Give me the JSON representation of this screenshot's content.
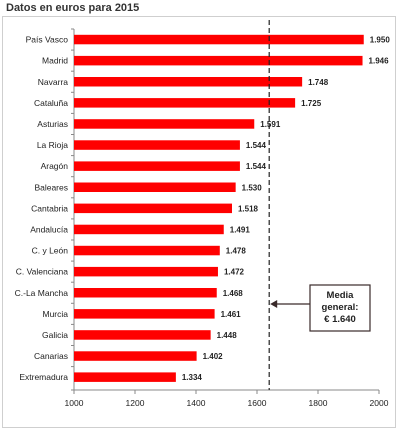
{
  "title": "Datos en euros para 2015",
  "chart_data": {
    "type": "bar",
    "orientation": "horizontal",
    "title": "Datos en euros para 2015",
    "categories": [
      "País Vasco",
      "Madrid",
      "Navarra",
      "Cataluña",
      "Asturias",
      "La Rioja",
      "Aragón",
      "Baleares",
      "Cantabria",
      "Andalucía",
      "C. y León",
      "C. Valenciana",
      "C.-La Mancha",
      "Murcia",
      "Galicia",
      "Canarias",
      "Extremadura"
    ],
    "values": [
      1950,
      1946,
      1748,
      1725,
      1591,
      1544,
      1544,
      1530,
      1518,
      1491,
      1478,
      1472,
      1468,
      1461,
      1448,
      1402,
      1334
    ],
    "value_labels": [
      "1.950",
      "1.946",
      "1.748",
      "1.725",
      "1.591",
      "1.544",
      "1.544",
      "1.530",
      "1.518",
      "1.491",
      "1.478",
      "1.472",
      "1.468",
      "1.461",
      "1.448",
      "1.402",
      "1.334"
    ],
    "xlim": [
      1000,
      2000
    ],
    "xticks": [
      1000,
      1200,
      1400,
      1600,
      1800,
      2000
    ],
    "xtick_labels": [
      "1000",
      "1200",
      "1400",
      "1600",
      "1800",
      "2000"
    ],
    "reference_line": {
      "value": 1640,
      "style": "dashed",
      "label_lines": [
        "Media",
        "general:",
        "€ 1.640"
      ]
    },
    "grid": false,
    "bar_color": "#ff0000",
    "xlabel": "",
    "ylabel": ""
  }
}
